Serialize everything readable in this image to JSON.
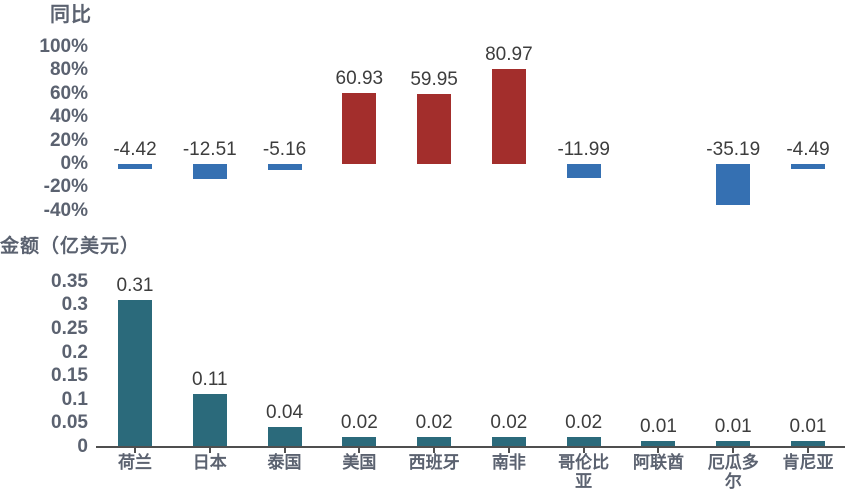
{
  "chart_data": [
    {
      "type": "bar",
      "title": "同比",
      "unit": "%",
      "categories": [
        "荷兰",
        "日本",
        "泰国",
        "美国",
        "西班牙",
        "南非",
        "哥伦比亚",
        "阿联酋",
        "厄瓜多尔",
        "肯尼亚"
      ],
      "values": [
        -4.42,
        -12.51,
        -5.16,
        60.93,
        59.95,
        80.97,
        -11.99,
        null,
        -35.19,
        -4.49
      ],
      "data_labels": [
        "-4.42",
        "-12.51",
        "-5.16",
        "60.93",
        "59.95",
        "80.97",
        "-11.99",
        "",
        "-35.19",
        "-4.49"
      ],
      "y_ticks": [
        "100%",
        "80%",
        "60%",
        "40%",
        "20%",
        "0%",
        "-20%",
        "-40%"
      ],
      "ylim": [
        -40,
        100
      ],
      "grid": false,
      "legend": "none",
      "x_axis_labels_shown": false,
      "positive_color": "#A32E2C",
      "negative_color": "#3570B2",
      "label_color": "#3D3D3D",
      "axis_text_color": "#5B6270"
    },
    {
      "type": "bar",
      "title": "金额（亿美元）",
      "unit": "亿美元",
      "categories": [
        "荷兰",
        "日本",
        "泰国",
        "美国",
        "西班牙",
        "南非",
        "哥伦比亚",
        "阿联酋",
        "厄瓜多尔",
        "肯尼亚"
      ],
      "category_labels": [
        "荷兰",
        "日本",
        "泰国",
        "美国",
        "西班牙",
        "南非",
        "哥伦比\n亚",
        "阿联酋",
        "厄瓜多\n尔",
        "肯尼亚"
      ],
      "values": [
        0.31,
        0.11,
        0.04,
        0.02,
        0.02,
        0.02,
        0.02,
        0.01,
        0.01,
        0.01
      ],
      "data_labels": [
        "0.31",
        "0.11",
        "0.04",
        "0.02",
        "0.02",
        "0.02",
        "0.02",
        "0.01",
        "0.01",
        "0.01"
      ],
      "y_ticks": [
        "0.35",
        "0.3",
        "0.25",
        "0.2",
        "0.15",
        "0.1",
        "0.05",
        "0"
      ],
      "ylim": [
        0,
        0.35
      ],
      "grid": false,
      "legend": "none",
      "x_axis_labels_shown": true,
      "bar_color": "#2B6A7B",
      "label_color": "#3D3D3D",
      "axis_text_color": "#5B6270",
      "axis_line_color": "#4F4F4F"
    }
  ]
}
